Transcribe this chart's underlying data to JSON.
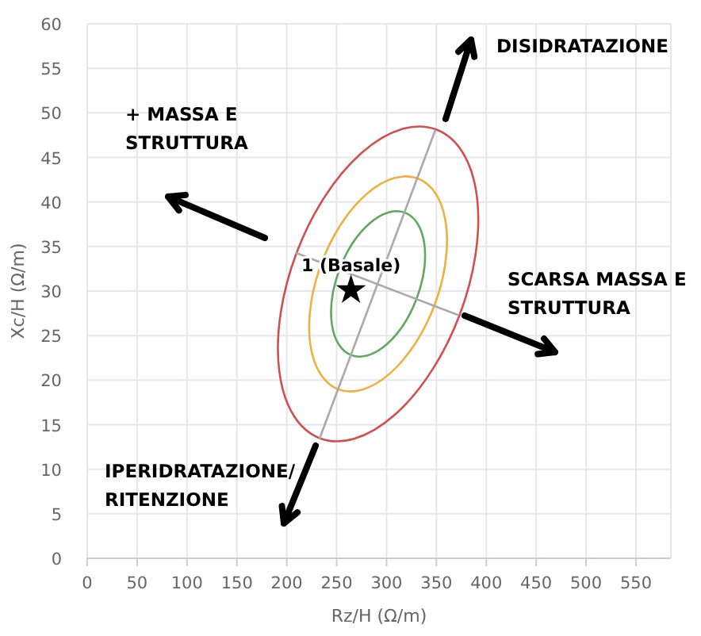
{
  "chart_data": {
    "type": "line",
    "xlabel": "Rz/H (Ω/m)",
    "ylabel": "Xc/H (Ω/m)",
    "xlim": [
      0,
      585
    ],
    "ylim": [
      0,
      60
    ],
    "xticks": [
      0,
      50,
      100,
      150,
      200,
      250,
      300,
      350,
      400,
      450,
      500,
      550
    ],
    "yticks": [
      0,
      5,
      10,
      15,
      20,
      25,
      30,
      35,
      40,
      45,
      50,
      55,
      60
    ],
    "grid": true,
    "marker": "none",
    "series": [
      {
        "color": "#aaaaaa",
        "x": [
          232.7,
          349
        ],
        "values": [
          13.4,
          48.1
        ]
      },
      {
        "color": "#aaaaaa",
        "x": [
          208.9,
          371.8
        ],
        "values": [
          34.3,
          27.3
        ]
      },
      {
        "type": "scatter",
        "color": "#000000",
        "marker": "star",
        "x": [
          264.4
        ],
        "values": [
          30.1
        ]
      }
    ],
    "annotations": [
      {
        "text": "1 (Basale)",
        "x": 264.4,
        "y": 30.1
      },
      "DISIDRATAZIONE",
      "+ MASSA E STRUTTURA",
      "SCARSA MASSA E STRUTTURA",
      "IPERIDRATAZIONE/ RITENZIONE"
    ]
  }
}
